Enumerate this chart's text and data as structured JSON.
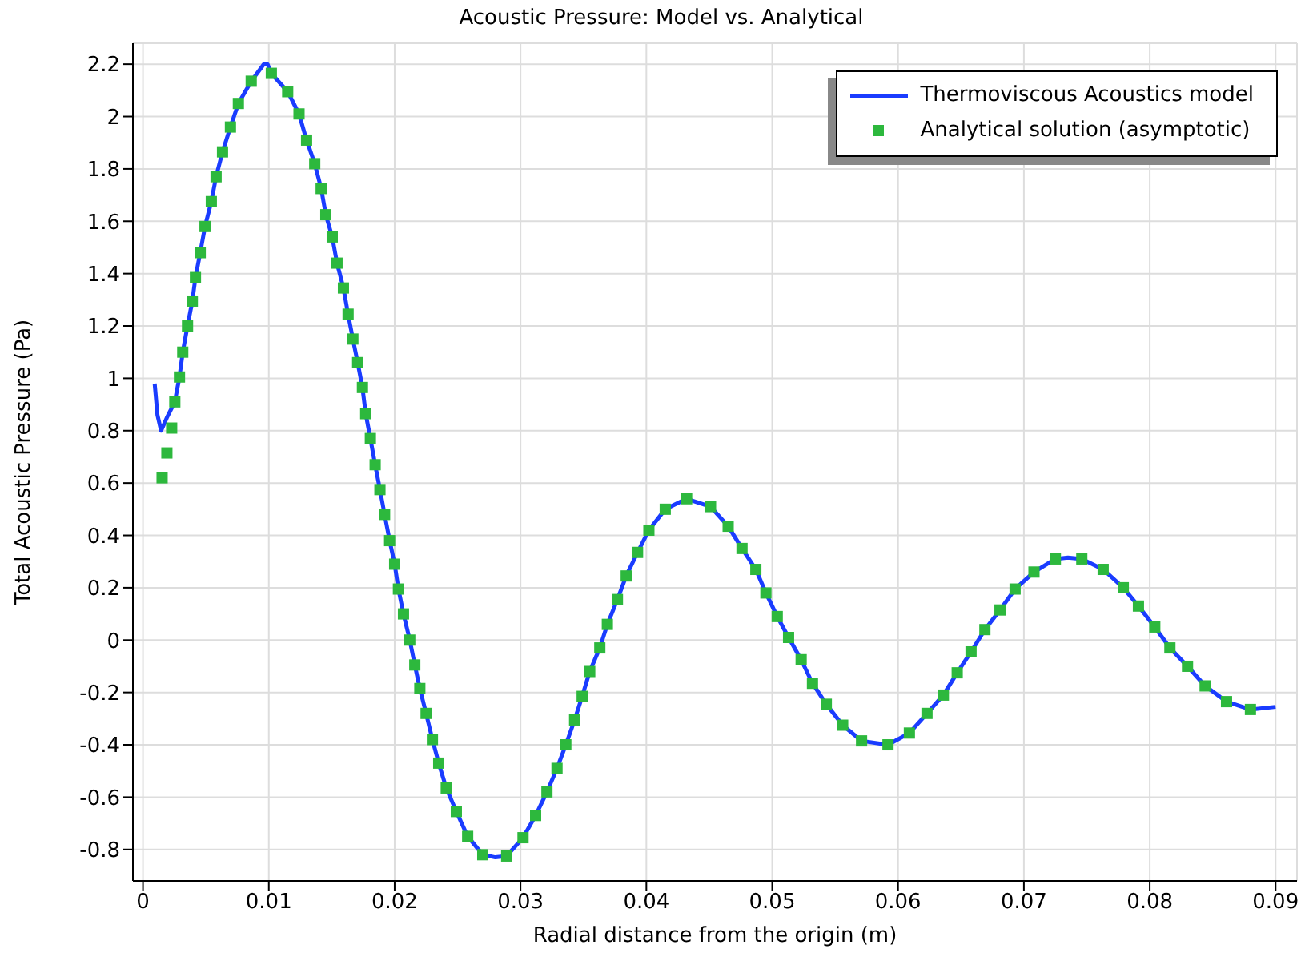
{
  "chart_data": {
    "type": "line",
    "title": "Acoustic Pressure: Model vs. Analytical",
    "xlabel": "Radial distance from the origin (m)",
    "ylabel": "Total Acoustic Pressure (Pa)",
    "xlim": [
      -0.0008,
      0.0917
    ],
    "ylim": [
      -0.92,
      2.28
    ],
    "xticks": [
      0,
      0.01,
      0.02,
      0.03,
      0.04,
      0.05,
      0.06,
      0.07,
      0.08,
      0.09
    ],
    "yticks": [
      -0.8,
      -0.6,
      -0.4,
      -0.2,
      0,
      0.2,
      0.4,
      0.6,
      0.8,
      1,
      1.2,
      1.4,
      1.6,
      1.8,
      2,
      2.2
    ],
    "grid": true,
    "legend": "top right",
    "series": [
      {
        "name": "Thermoviscous Acoustics model",
        "color": "#1a3cff",
        "x": [
          0.00093,
          0.00115,
          0.00144,
          0.0019,
          0.00253,
          0.0029,
          0.00316,
          0.00354,
          0.00392,
          0.00417,
          0.00455,
          0.00493,
          0.00543,
          0.00581,
          0.00632,
          0.00695,
          0.00758,
          0.0086,
          0.0096,
          0.0099,
          0.0102,
          0.0115,
          0.0124,
          0.013,
          0.01365,
          0.01416,
          0.01453,
          0.01504,
          0.01542,
          0.01593,
          0.0163,
          0.01668,
          0.01706,
          0.01744,
          0.0177,
          0.01807,
          0.01845,
          0.01883,
          0.0192,
          0.0196,
          0.02,
          0.0203,
          0.0207,
          0.0212,
          0.0216,
          0.022,
          0.0225,
          0.023,
          0.0235,
          0.0241,
          0.0249,
          0.0258,
          0.027,
          0.028,
          0.0289,
          0.0302,
          0.0312,
          0.0321,
          0.0329,
          0.0336,
          0.0343,
          0.0349,
          0.0355,
          0.0363,
          0.0369,
          0.0377,
          0.0384,
          0.0393,
          0.0402,
          0.0415,
          0.0432,
          0.0451,
          0.0465,
          0.0476,
          0.0487,
          0.0495,
          0.0504,
          0.0513,
          0.0523,
          0.0532,
          0.0543,
          0.0556,
          0.0571,
          0.0592,
          0.0609,
          0.0623,
          0.0636,
          0.0647,
          0.0658,
          0.0669,
          0.0681,
          0.0693,
          0.0708,
          0.0725,
          0.0735,
          0.0746,
          0.0763,
          0.0779,
          0.0791,
          0.0804,
          0.0816,
          0.083,
          0.0844,
          0.0861,
          0.088,
          0.09
        ],
        "values": [
          0.98,
          0.86,
          0.8,
          0.85,
          0.91,
          1.005,
          1.1,
          1.2,
          1.295,
          1.385,
          1.48,
          1.58,
          1.675,
          1.77,
          1.865,
          1.96,
          2.05,
          2.135,
          2.2,
          2.2,
          2.165,
          2.095,
          2.01,
          1.91,
          1.82,
          1.725,
          1.625,
          1.54,
          1.44,
          1.345,
          1.245,
          1.15,
          1.06,
          0.965,
          0.865,
          0.77,
          0.67,
          0.575,
          0.48,
          0.38,
          0.29,
          0.195,
          0.1,
          0,
          -0.095,
          -0.185,
          -0.28,
          -0.38,
          -0.47,
          -0.565,
          -0.655,
          -0.75,
          -0.82,
          -0.83,
          -0.825,
          -0.755,
          -0.67,
          -0.58,
          -0.49,
          -0.4,
          -0.305,
          -0.215,
          -0.12,
          -0.03,
          0.06,
          0.155,
          0.245,
          0.335,
          0.42,
          0.5,
          0.54,
          0.51,
          0.435,
          0.35,
          0.27,
          0.18,
          0.09,
          0.01,
          -0.075,
          -0.165,
          -0.245,
          -0.325,
          -0.385,
          -0.4,
          -0.355,
          -0.28,
          -0.21,
          -0.125,
          -0.045,
          0.04,
          0.115,
          0.195,
          0.26,
          0.31,
          0.315,
          0.31,
          0.27,
          0.2,
          0.13,
          0.05,
          -0.03,
          -0.1,
          -0.175,
          -0.235,
          -0.265,
          -0.255
        ]
      },
      {
        "name": "Analytical solution (asymptotic)",
        "type": "scatter",
        "color": "#2db83d",
        "marker": "square",
        "x": [
          0.00152,
          0.0019,
          0.00228,
          0.00253,
          0.0029,
          0.00316,
          0.00354,
          0.00392,
          0.00417,
          0.00455,
          0.00493,
          0.00543,
          0.00581,
          0.00632,
          0.00695,
          0.00758,
          0.0086,
          0.0102,
          0.0115,
          0.0124,
          0.013,
          0.01365,
          0.01416,
          0.01453,
          0.01504,
          0.01542,
          0.01593,
          0.0163,
          0.01668,
          0.01706,
          0.01744,
          0.0177,
          0.01807,
          0.01845,
          0.01883,
          0.0192,
          0.0196,
          0.02,
          0.0203,
          0.0207,
          0.0212,
          0.0216,
          0.022,
          0.0225,
          0.023,
          0.0235,
          0.0241,
          0.0249,
          0.0258,
          0.027,
          0.0289,
          0.0302,
          0.0312,
          0.0321,
          0.0329,
          0.0336,
          0.0343,
          0.0349,
          0.0355,
          0.0363,
          0.0369,
          0.0377,
          0.0384,
          0.0393,
          0.0402,
          0.0415,
          0.0432,
          0.0451,
          0.0465,
          0.0476,
          0.0487,
          0.0495,
          0.0504,
          0.0513,
          0.0523,
          0.0532,
          0.0543,
          0.0556,
          0.0571,
          0.0592,
          0.0609,
          0.0623,
          0.0636,
          0.0647,
          0.0658,
          0.0669,
          0.0681,
          0.0693,
          0.0708,
          0.0725,
          0.0746,
          0.0763,
          0.0779,
          0.0791,
          0.0804,
          0.0816,
          0.083,
          0.0844,
          0.0861,
          0.088
        ],
        "values": [
          0.62,
          0.715,
          0.81,
          0.91,
          1.005,
          1.1,
          1.2,
          1.295,
          1.385,
          1.48,
          1.58,
          1.675,
          1.77,
          1.865,
          1.96,
          2.05,
          2.135,
          2.165,
          2.095,
          2.01,
          1.91,
          1.82,
          1.725,
          1.625,
          1.54,
          1.44,
          1.345,
          1.245,
          1.15,
          1.06,
          0.965,
          0.865,
          0.77,
          0.67,
          0.575,
          0.48,
          0.38,
          0.29,
          0.195,
          0.1,
          0,
          -0.095,
          -0.185,
          -0.28,
          -0.38,
          -0.47,
          -0.565,
          -0.655,
          -0.75,
          -0.82,
          -0.825,
          -0.755,
          -0.67,
          -0.58,
          -0.49,
          -0.4,
          -0.305,
          -0.215,
          -0.12,
          -0.03,
          0.06,
          0.155,
          0.245,
          0.335,
          0.42,
          0.5,
          0.54,
          0.51,
          0.435,
          0.35,
          0.27,
          0.18,
          0.09,
          0.01,
          -0.075,
          -0.165,
          -0.245,
          -0.325,
          -0.385,
          -0.4,
          -0.355,
          -0.28,
          -0.21,
          -0.125,
          -0.045,
          0.04,
          0.115,
          0.195,
          0.26,
          0.31,
          0.31,
          0.27,
          0.2,
          0.13,
          0.05,
          -0.03,
          -0.1,
          -0.175,
          -0.235,
          -0.265
        ]
      }
    ]
  }
}
